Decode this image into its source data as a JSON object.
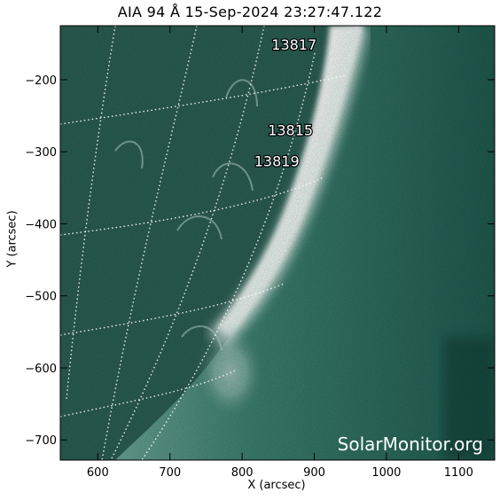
{
  "title": "AIA 94 Å 15-Sep-2024 23:27:47.122",
  "xaxis": {
    "label": "X (arcsec)",
    "ticks": [
      {
        "label": "600",
        "value": 600
      },
      {
        "label": "700",
        "value": 700
      },
      {
        "label": "800",
        "value": 800
      },
      {
        "label": "900",
        "value": 900
      },
      {
        "label": "1000",
        "value": 1000
      },
      {
        "label": "1100",
        "value": 1100
      }
    ]
  },
  "yaxis": {
    "label": "Y (arcsec)",
    "ticks": [
      {
        "label": "−200",
        "value": -200
      },
      {
        "label": "−300",
        "value": -300
      },
      {
        "label": "−400",
        "value": -400
      },
      {
        "label": "−500",
        "value": -500
      },
      {
        "label": "−600",
        "value": -600
      },
      {
        "label": "−700",
        "value": -700
      }
    ]
  },
  "regions": [
    {
      "label": "13817",
      "x": 872,
      "y": -158
    },
    {
      "label": "13815",
      "x": 867,
      "y": -277
    },
    {
      "label": "13819",
      "x": 848,
      "y": -320
    }
  ],
  "watermark": "SolarMonitor.org",
  "colors": {
    "background_dark": "#0f3b33",
    "teal": "#2d7563",
    "bright": "#ffffff",
    "grid": "#ffffff"
  }
}
